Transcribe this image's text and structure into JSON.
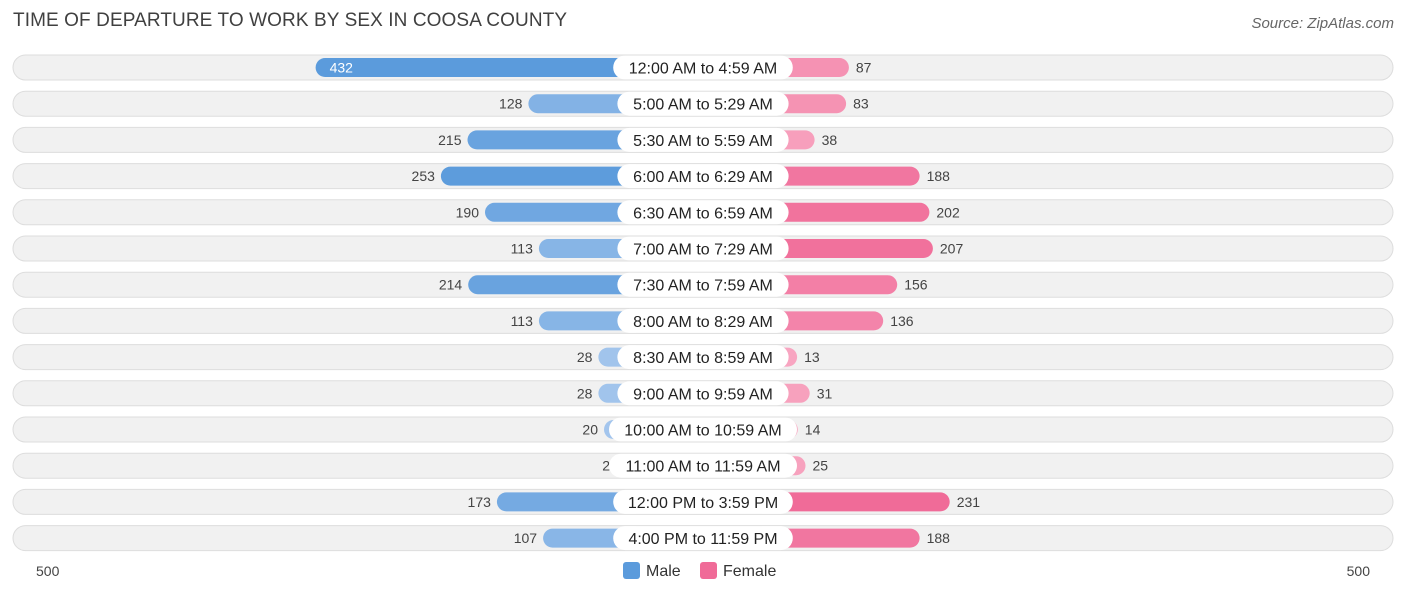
{
  "title": "TIME OF DEPARTURE TO WORK BY SEX IN COOSA COUNTY",
  "source": "Source: ZipAtlas.com",
  "colors": {
    "male_strong": "#5b9bdc",
    "male_light": "#a9c9ee",
    "female_strong": "#f06b98",
    "female_light": "#f8a9c3",
    "row_bg": "#f1f1f1",
    "row_border": "#dddddd"
  },
  "chart_data": {
    "type": "bar",
    "orientation": "horizontal-diverging",
    "title": "TIME OF DEPARTURE TO WORK BY SEX IN COOSA COUNTY",
    "categories": [
      "12:00 AM to 4:59 AM",
      "5:00 AM to 5:29 AM",
      "5:30 AM to 5:59 AM",
      "6:00 AM to 6:29 AM",
      "6:30 AM to 6:59 AM",
      "7:00 AM to 7:29 AM",
      "7:30 AM to 7:59 AM",
      "8:00 AM to 8:29 AM",
      "8:30 AM to 8:59 AM",
      "9:00 AM to 9:59 AM",
      "10:00 AM to 10:59 AM",
      "11:00 AM to 11:59 AM",
      "12:00 PM to 3:59 PM",
      "4:00 PM to 11:59 PM"
    ],
    "series": [
      {
        "name": "Male",
        "values": [
          432,
          128,
          215,
          253,
          190,
          113,
          214,
          113,
          28,
          28,
          20,
          2,
          173,
          107
        ]
      },
      {
        "name": "Female",
        "values": [
          87,
          83,
          38,
          188,
          202,
          207,
          156,
          136,
          13,
          31,
          14,
          25,
          231,
          188
        ]
      }
    ],
    "axis": {
      "left_label": "500",
      "right_label": "500",
      "max": 500
    },
    "legend": {
      "position": "bottom-center",
      "items": [
        "Male",
        "Female"
      ]
    }
  }
}
